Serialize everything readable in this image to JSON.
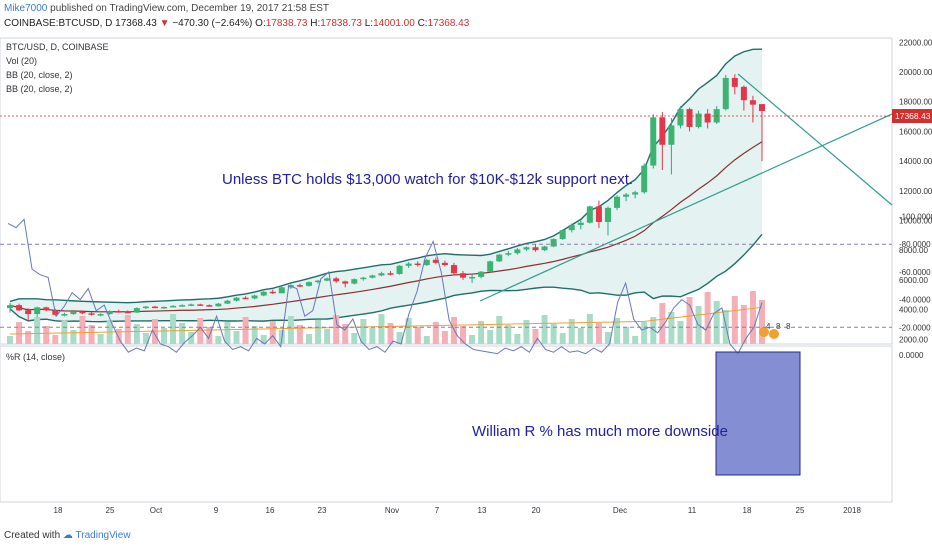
{
  "header": {
    "author": "Mike7000",
    "published_text": "published on TradingView.com, December 19, 2017 21:58 EST",
    "symbol": "COINBASE:BTCUSD, D",
    "last": "17368.43",
    "change": "−470.30 (−2.64%)",
    "o_label": "O:",
    "o_value": "17838.73",
    "h_label": "H:",
    "h_value": "17838.73",
    "l_label": "L:",
    "l_value": "14001.00",
    "c_label": "C:",
    "c_value": "17368.43"
  },
  "legend": {
    "pair": "BTC/USD, D, COINBASE",
    "vol": "Vol (20)",
    "bb1": "BB (20, close, 2)",
    "bb2": "BB (20, close, 2)"
  },
  "annotations": {
    "price_note": "Unless BTC holds $13,000 watch for $10K-$12k support next.",
    "wr_note": "William R % has much more downside",
    "wr_title": "%R (14, close)",
    "price_tag": "17368.43",
    "event_labels": [
      "4",
      "8",
      "8"
    ]
  },
  "footer": {
    "created_with": "Created with",
    "brand": "TradingView"
  },
  "colors": {
    "up": "#26a69a",
    "up_fill": "#3cb371",
    "down": "#e2374a",
    "bb_band": "#1e6f6a",
    "bb_fill": "#cde8e6",
    "basis": "#8b2f2f",
    "vol_up": "#a8dcc6",
    "vol_down": "#f4b0b6",
    "vol_ma": "#f0a030",
    "wr_line": "#6678b8",
    "wr_fill": "#efe3fb",
    "box": "#5060c0",
    "trend": "#2e9e8e",
    "note": "#2020a0",
    "last_price": "#d32f2f"
  },
  "chart_data": [
    {
      "type": "candlestick",
      "title": "BTC/USD, D, COINBASE",
      "x_ticks": [
        "18",
        "25",
        "Oct",
        "9",
        "16",
        "23",
        "Nov",
        "7",
        "13",
        "20",
        "Dec",
        "11",
        "18",
        "25",
        "2018"
      ],
      "y_ticks": [
        "22000.00",
        "20000.00",
        "18000.00",
        "16000.00",
        "14000.00",
        "12000.00",
        "10000.00",
        "8000.00",
        "6000.00",
        "4000.00",
        "2000.00"
      ],
      "ylim": [
        2000,
        22000
      ],
      "ohlc": [
        [
          4100,
          4450,
          3800,
          4300
        ],
        [
          4300,
          4400,
          3900,
          3950
        ],
        [
          3950,
          4100,
          3200,
          3700
        ],
        [
          3700,
          4200,
          3500,
          4150
        ],
        [
          4150,
          4200,
          3900,
          3950
        ],
        [
          3950,
          4050,
          3600,
          3650
        ],
        [
          3650,
          3800,
          3550,
          3700
        ],
        [
          3700,
          3900,
          3650,
          3850
        ],
        [
          3850,
          3950,
          3700,
          3750
        ],
        [
          3750,
          3850,
          3600,
          3650
        ],
        [
          3650,
          3750,
          3550,
          3700
        ],
        [
          3700,
          3950,
          3650,
          3900
        ],
        [
          3900,
          4000,
          3800,
          3850
        ],
        [
          3850,
          3950,
          3750,
          3800
        ],
        [
          3800,
          4150,
          3780,
          4100
        ],
        [
          4100,
          4250,
          4050,
          4200
        ],
        [
          4200,
          4250,
          4100,
          4150
        ],
        [
          4150,
          4200,
          4050,
          4180
        ],
        [
          4180,
          4300,
          4150,
          4250
        ],
        [
          4250,
          4350,
          4200,
          4300
        ],
        [
          4300,
          4400,
          4250,
          4350
        ],
        [
          4350,
          4400,
          4250,
          4300
        ],
        [
          4300,
          4350,
          4200,
          4220
        ],
        [
          4220,
          4450,
          4200,
          4400
        ],
        [
          4400,
          4650,
          4380,
          4600
        ],
        [
          4600,
          4850,
          4550,
          4800
        ],
        [
          4800,
          4900,
          4700,
          4750
        ],
        [
          4750,
          5000,
          4700,
          4950
        ],
        [
          4950,
          5250,
          4900,
          5200
        ],
        [
          5200,
          5350,
          5050,
          5100
        ],
        [
          5100,
          5550,
          5100,
          5500
        ],
        [
          5500,
          5700,
          5400,
          5650
        ],
        [
          5650,
          5750,
          5500,
          5600
        ],
        [
          5600,
          5900,
          5550,
          5850
        ],
        [
          5850,
          6000,
          5750,
          5950
        ],
        [
          5950,
          6150,
          5900,
          6100
        ],
        [
          6100,
          6200,
          5800,
          5900
        ],
        [
          5900,
          5950,
          5500,
          5750
        ],
        [
          5750,
          6100,
          5700,
          6050
        ],
        [
          6050,
          6200,
          5950,
          6150
        ],
        [
          6150,
          6350,
          6100,
          6300
        ],
        [
          6300,
          6550,
          6250,
          6450
        ],
        [
          6450,
          6600,
          6300,
          6400
        ],
        [
          6400,
          7000,
          6350,
          6950
        ],
        [
          6950,
          7200,
          6800,
          7100
        ],
        [
          7100,
          7250,
          6900,
          7000
        ],
        [
          7000,
          7400,
          6950,
          7350
        ],
        [
          7350,
          7500,
          7050,
          7150
        ],
        [
          7150,
          7300,
          6900,
          7000
        ],
        [
          7000,
          7150,
          6300,
          6450
        ],
        [
          6450,
          6600,
          6000,
          6150
        ],
        [
          6150,
          6350,
          5800,
          6200
        ],
        [
          6200,
          6600,
          6100,
          6550
        ],
        [
          6550,
          7300,
          6500,
          7250
        ],
        [
          7250,
          7750,
          7200,
          7700
        ],
        [
          7700,
          7950,
          7600,
          7800
        ],
        [
          7800,
          8150,
          7700,
          8050
        ],
        [
          8050,
          8250,
          7950,
          8200
        ],
        [
          8200,
          8400,
          7900,
          8000
        ],
        [
          8000,
          8300,
          7950,
          8250
        ],
        [
          8250,
          8800,
          8200,
          8750
        ],
        [
          8750,
          9400,
          8700,
          9350
        ],
        [
          9350,
          9800,
          9200,
          9700
        ],
        [
          9700,
          10000,
          9400,
          9850
        ],
        [
          9850,
          11000,
          9800,
          10950
        ],
        [
          10950,
          11350,
          9500,
          9900
        ],
        [
          9900,
          10950,
          9000,
          10850
        ],
        [
          10850,
          11700,
          10700,
          11600
        ],
        [
          11600,
          11850,
          11300,
          11750
        ],
        [
          11750,
          12000,
          11500,
          11900
        ],
        [
          11900,
          13850,
          11800,
          13700
        ],
        [
          13700,
          17150,
          13500,
          16950
        ],
        [
          16950,
          17300,
          13400,
          15100
        ],
        [
          15100,
          16900,
          13100,
          16400
        ],
        [
          16400,
          17700,
          16200,
          17500
        ],
        [
          17500,
          17600,
          16000,
          16300
        ],
        [
          16300,
          17400,
          16200,
          17200
        ],
        [
          17200,
          17500,
          16200,
          16600
        ],
        [
          16600,
          17700,
          16500,
          17500
        ],
        [
          17500,
          19800,
          17400,
          19600
        ],
        [
          19600,
          19850,
          18500,
          19000
        ],
        [
          19000,
          19100,
          17400,
          18100
        ],
        [
          18100,
          18400,
          16600,
          17800
        ],
        [
          17838.73,
          17838.73,
          14001,
          17368.43
        ]
      ],
      "volume_ma_label": "Vol (20)",
      "bollinger": "BB (20, close, 2)"
    },
    {
      "type": "line",
      "title": "%R (14, close)",
      "y_ticks": [
        "0.0000",
        "-20.0000",
        "-40.0000",
        "-60.0000",
        "-80.0000",
        "-100.0000"
      ],
      "ylim": [
        -100,
        0
      ],
      "levels": [
        -20,
        -80
      ],
      "values": [
        -95,
        -92,
        -98,
        -62,
        -58,
        -56,
        -28,
        -35,
        -45,
        -40,
        -48,
        -32,
        -36,
        -22,
        -10,
        -2,
        -5,
        -3,
        -18,
        -8,
        -6,
        -2,
        -9,
        -14,
        -20,
        -12,
        -28,
        -10,
        -4,
        -6,
        -3,
        -12,
        -8,
        -14,
        -6,
        -50,
        -48,
        -28,
        -32,
        -55,
        -60,
        -22,
        -18,
        -26,
        -10,
        -4,
        -6,
        -2,
        -10,
        -8,
        -30,
        -46,
        -70,
        -82,
        -60,
        -25,
        -14,
        -8,
        -4,
        -3,
        -2,
        -1,
        -5,
        -3,
        -6,
        -2,
        -12,
        -4,
        -2,
        -6,
        -2,
        -3,
        -1,
        -5,
        -2,
        -8,
        -38,
        -52,
        -26,
        -18,
        -20,
        -16,
        -24,
        -34,
        -40,
        -36,
        -22,
        -18,
        -30,
        -34,
        -8,
        -1,
        -12,
        -20,
        -38
      ]
    }
  ]
}
